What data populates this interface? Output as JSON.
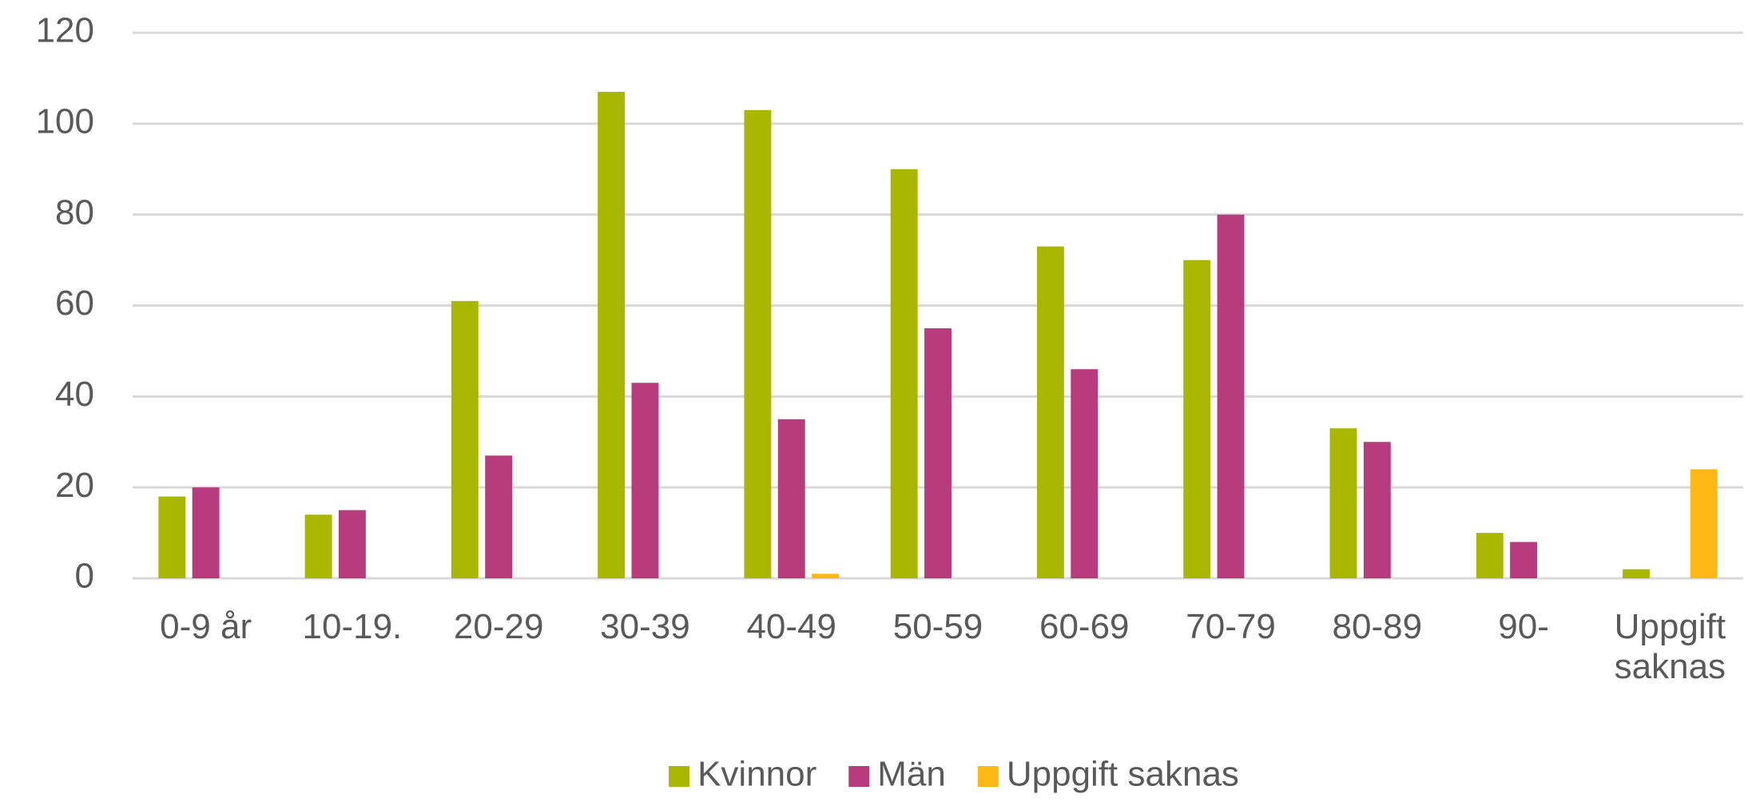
{
  "chart_data": {
    "type": "bar",
    "categories": [
      "0-9 år",
      "10-19.",
      "20-29",
      "30-39",
      "40-49",
      "50-59",
      "60-69",
      "70-79",
      "80-89",
      "90-",
      "Uppgift saknas"
    ],
    "series": [
      {
        "name": "Kvinnor",
        "color": "#aab700",
        "values": [
          18,
          14,
          61,
          107,
          103,
          90,
          73,
          70,
          33,
          10,
          2
        ]
      },
      {
        "name": "Män",
        "color": "#b83b7e",
        "values": [
          20,
          15,
          27,
          43,
          35,
          55,
          46,
          80,
          30,
          8,
          0
        ]
      },
      {
        "name": "Uppgift saknas",
        "color": "#fdb813",
        "values": [
          0,
          0,
          0,
          0,
          1,
          0,
          0,
          0,
          0,
          0,
          24
        ]
      }
    ],
    "ylim": [
      0,
      120
    ],
    "yticks": [
      0,
      20,
      40,
      60,
      80,
      100,
      120
    ],
    "grid": true,
    "legend": "bottom"
  }
}
